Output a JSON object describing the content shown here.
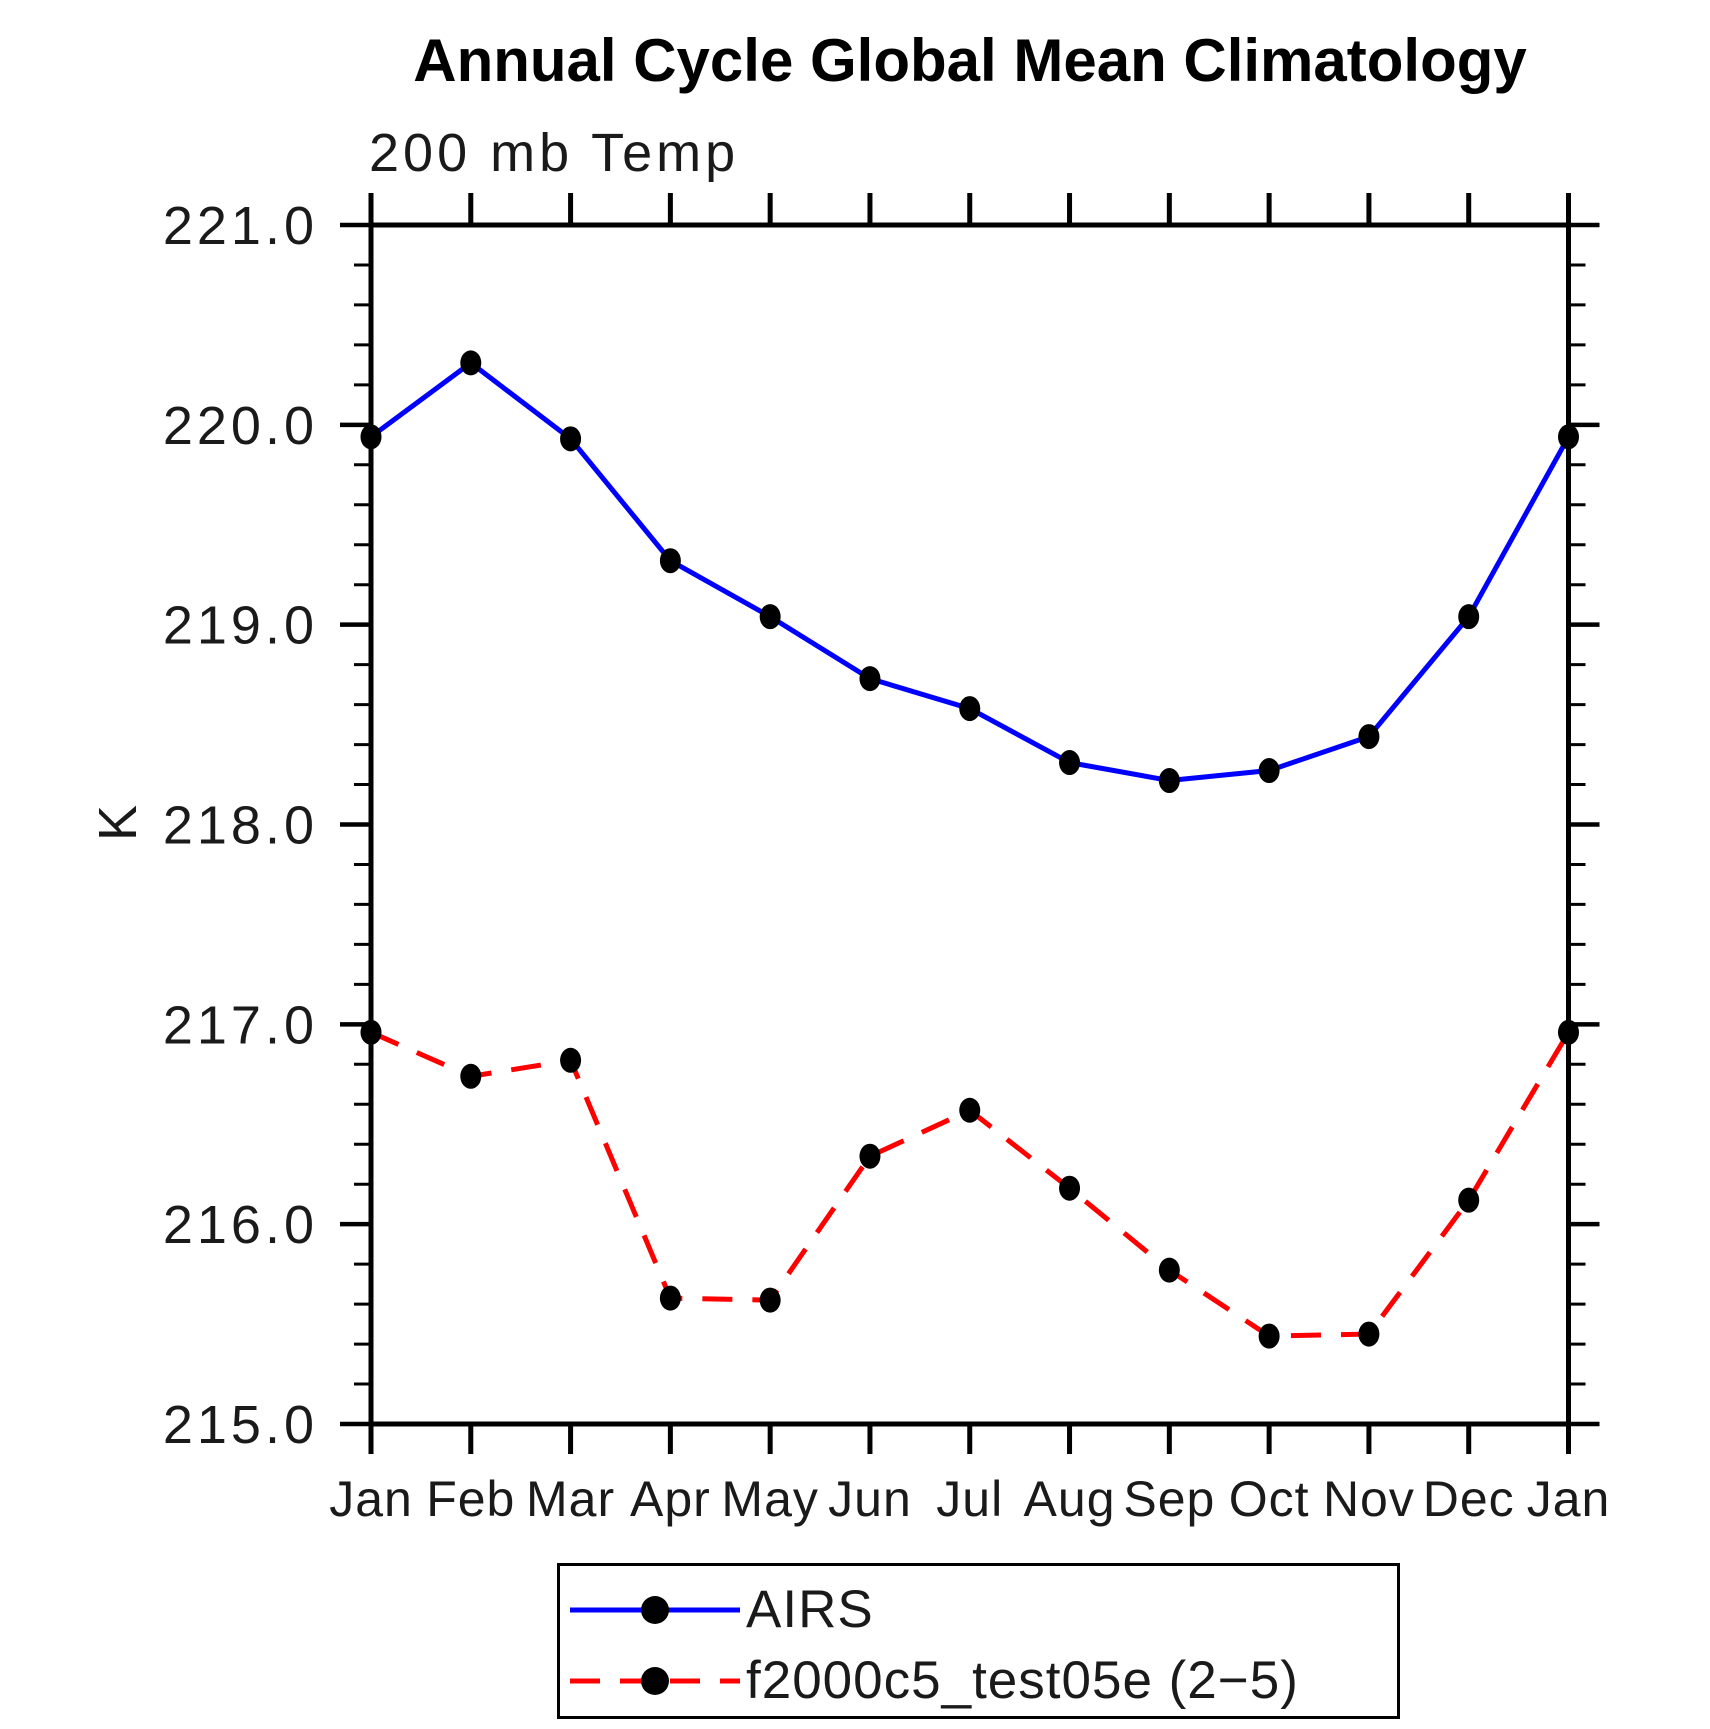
{
  "title": "Annual Cycle Global Mean Climatology",
  "subtitle": "200 mb Temp",
  "y_axis_label": "K",
  "legend": {
    "entries": [
      {
        "label": "AIRS",
        "color": "#0000ff",
        "line_style": "solid",
        "marker": "filled-circle",
        "marker_color": "#000000"
      },
      {
        "label": "f2000c5_test05e (2−5)",
        "color": "#ff0000",
        "line_style": "dashed",
        "marker": "filled-circle",
        "marker_color": "#000000"
      }
    ]
  },
  "chart_data": {
    "type": "line",
    "title": "Annual Cycle Global Mean Climatology",
    "subtitle": "200 mb Temp",
    "xlabel": "",
    "ylabel": "K",
    "categories": [
      "Jan",
      "Feb",
      "Mar",
      "Apr",
      "May",
      "Jun",
      "Jul",
      "Aug",
      "Sep",
      "Oct",
      "Nov",
      "Dec",
      "Jan"
    ],
    "series": [
      {
        "name": "AIRS",
        "color": "#0000ff",
        "line_style": "solid",
        "marker_color": "#000000",
        "values": [
          219.94,
          220.31,
          219.93,
          219.32,
          219.04,
          218.73,
          218.58,
          218.31,
          218.22,
          218.27,
          218.44,
          219.04,
          219.94
        ]
      },
      {
        "name": "f2000c5_test05e (2−5)",
        "color": "#ff0000",
        "line_style": "dashed",
        "marker_color": "#000000",
        "values": [
          216.96,
          216.74,
          216.82,
          215.63,
          215.62,
          216.34,
          216.57,
          216.18,
          215.77,
          215.44,
          215.45,
          216.12,
          216.96
        ]
      }
    ],
    "ylim": [
      215.0,
      221.0
    ],
    "ytick_major_interval": 1.0,
    "ytick_minor_interval": 0.2,
    "ytick_labels": [
      "215.0",
      "216.0",
      "217.0",
      "218.0",
      "219.0",
      "220.0",
      "221.0"
    ],
    "grid": "off",
    "tick_direction": "out",
    "legend_position": "bottom"
  }
}
